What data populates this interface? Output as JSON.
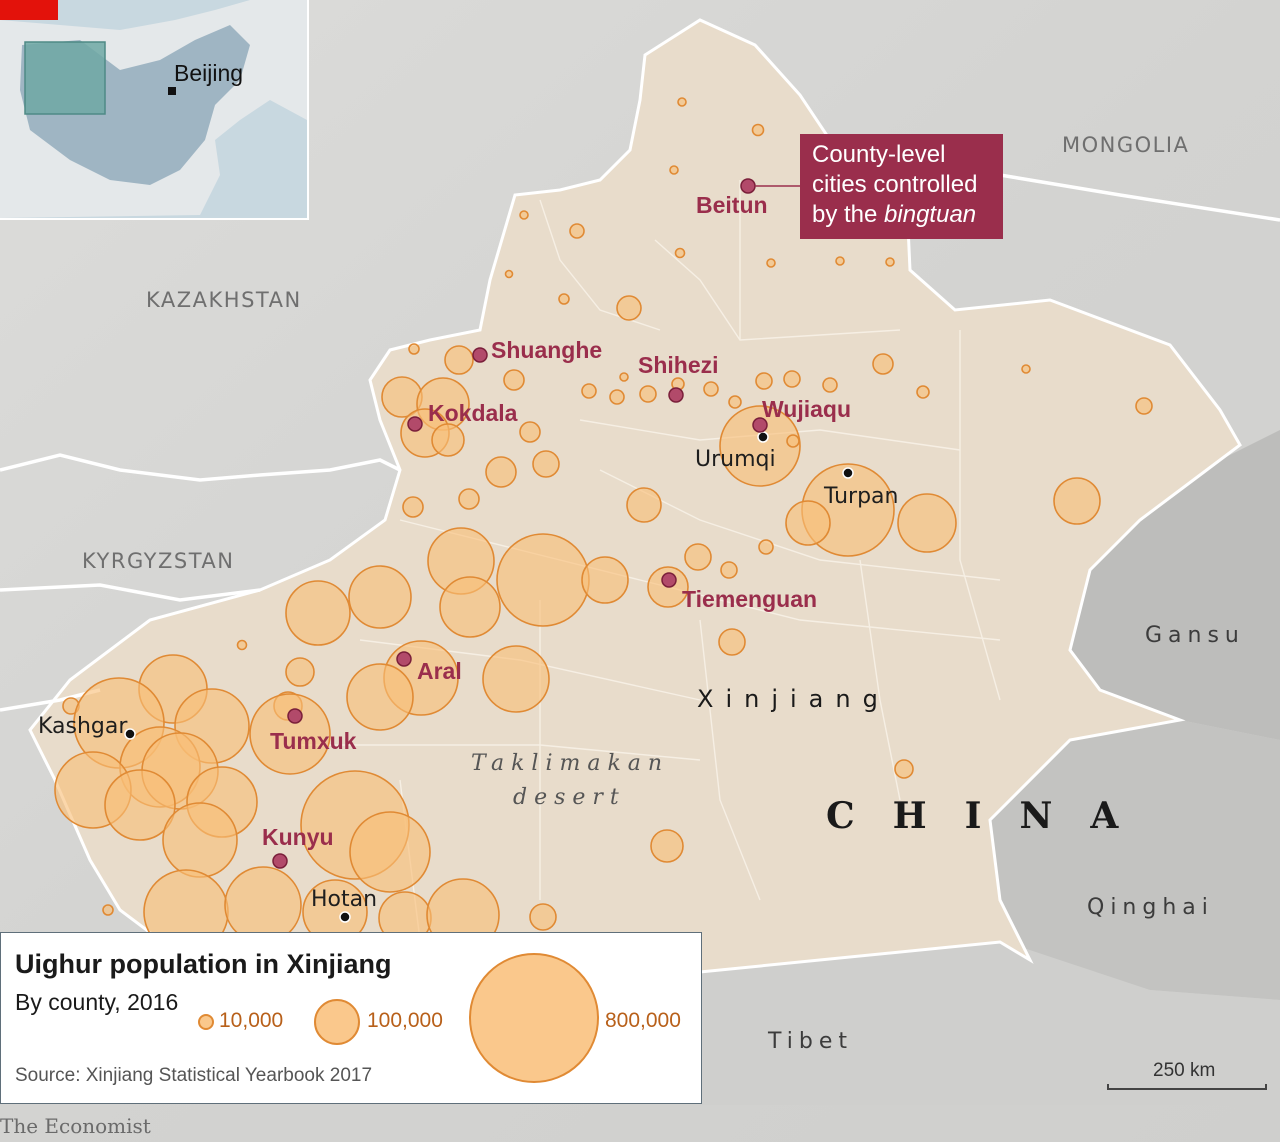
{
  "inset": {
    "capital": "Beijing"
  },
  "labels": {
    "mongolia": "MONGOLIA",
    "kazakhstan": "KAZAKHSTAN",
    "kyrgyzstan": "KYRGYZSTAN",
    "gansu": "Gansu",
    "qinghai": "Qinghai",
    "tibet": "Tibet",
    "xinjiang": "Xinjiang",
    "china": "CHINA",
    "desert_line1": "Taklimakan",
    "desert_line2": "desert"
  },
  "cities": {
    "kashgar": "Kashgar",
    "hotan": "Hotan",
    "urumqi": "Urumqi",
    "turpan": "Turpan"
  },
  "bingtuan_cities": {
    "beitun": "Beitun",
    "shuanghe": "Shuanghe",
    "shihezi": "Shihezi",
    "kokdala": "Kokdala",
    "wujiaqu": "Wujiaqu",
    "tiemenguan": "Tiemenguan",
    "aral": "Aral",
    "tumxuk": "Tumxuk",
    "kunyu": "Kunyu"
  },
  "callout": {
    "line1": "County-level",
    "line2": "cities controlled",
    "line3_prefix": "by the ",
    "line3_italic": "bingtuan"
  },
  "legend": {
    "title": "Uighur population in Xinjiang",
    "subtitle": "By county, 2016",
    "sizes": [
      {
        "value": 10000,
        "label": "10,000"
      },
      {
        "value": 100000,
        "label": "100,000"
      },
      {
        "value": 800000,
        "label": "800,000"
      }
    ],
    "source": "Source: Xinjiang Statistical Yearbook 2017"
  },
  "scale": {
    "label": "250 km"
  },
  "credit": "The Economist",
  "colors": {
    "bubble_fill": "#f9be78",
    "bubble_stroke": "#e08a34",
    "bingtuan": "#9a2e4c",
    "xinjiang_fill": "#e8dccb",
    "terrain": "#d6d6d4",
    "inset_sea": "#c8d8e0",
    "inset_land": "#9fb5c3",
    "inset_highlight": "#6fa8a4"
  }
}
